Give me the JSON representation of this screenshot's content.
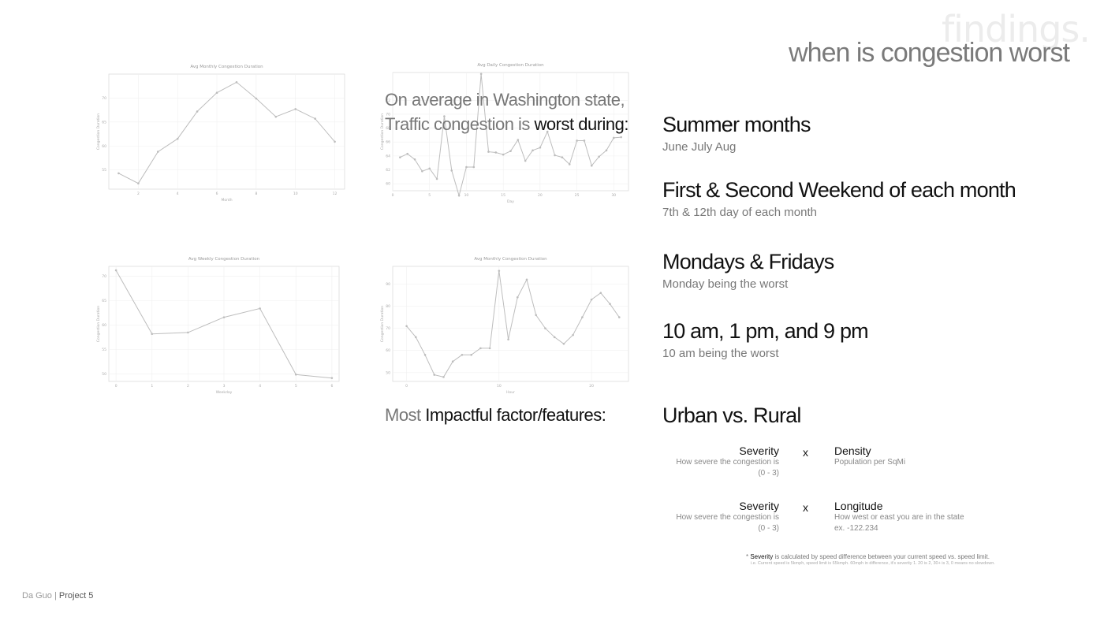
{
  "header": {
    "bg_title": "findings.",
    "subtitle": "when is congestion worst"
  },
  "intro": {
    "line1": "On average in Washington state,",
    "line2_light": "Traffic congestion is ",
    "line2_dark": "worst during:"
  },
  "findings": [
    {
      "title": "Summer months",
      "sub": "June July Aug"
    },
    {
      "title": "First & Second Weekend of each month",
      "sub": "7th & 12th day of each month"
    },
    {
      "title": "Mondays & Fridays",
      "sub": "Monday being the worst"
    },
    {
      "title": "10 am, 1 pm, and 9 pm",
      "sub": "10 am being the worst"
    }
  ],
  "factors": {
    "label_light": "Most ",
    "label_dark": "Impactful factor/features:",
    "heading": "Urban vs. Rural",
    "rows": [
      {
        "left_name": "Severity",
        "left_desc": "How severe the congestion is",
        "left_range": "(0 - 3)",
        "op": "x",
        "right_name": "Density",
        "right_desc": "Population per SqMi",
        "right_extra": ""
      },
      {
        "left_name": "Severity",
        "left_desc": "How severe the congestion is",
        "left_range": "(0 - 3)",
        "op": "x",
        "right_name": "Longitude",
        "right_desc": "How west or east you are in the state",
        "right_extra": "ex. -122.234"
      }
    ]
  },
  "note": {
    "star": "* ",
    "bold": "Severity",
    "text": " is calculated by speed difference between your current speed vs. speed limit.",
    "example": "i.e. Current speed is 5kmph, speed limit is 65kmph. 60mph in difference, it's severity 1. 20 is 2, 30+ is 3, 0 means no slowdown."
  },
  "footer": {
    "name": "Da Guo",
    "sep": " | ",
    "project": "Project 5"
  },
  "chart_data": [
    {
      "type": "line",
      "title": "Avg Monthly Congestion Duration",
      "xlabel": "Month",
      "ylabel": "Congestion Duration",
      "x": [
        1,
        2,
        3,
        4,
        5,
        6,
        7,
        8,
        9,
        10,
        11,
        12
      ],
      "xticks": [
        2,
        4,
        6,
        8,
        10,
        12
      ],
      "yticks": [
        55,
        60,
        65,
        70
      ],
      "ylim": [
        51,
        75
      ],
      "xlim": [
        0.5,
        12.5
      ],
      "values": [
        54.3,
        52.2,
        58.8,
        61.5,
        67.2,
        71.1,
        73.3,
        69.9,
        66.1,
        67.7,
        65.7,
        60.9
      ]
    },
    {
      "type": "line",
      "title": "Avg Daily Congestion Duration",
      "xlabel": "Day",
      "ylabel": "Congestion Duration",
      "x": [
        1,
        2,
        3,
        4,
        5,
        6,
        7,
        8,
        9,
        10,
        11,
        12,
        13,
        14,
        15,
        16,
        17,
        18,
        19,
        20,
        21,
        22,
        23,
        24,
        25,
        26,
        27,
        28,
        29,
        30,
        31
      ],
      "xticks": [
        0,
        5,
        10,
        15,
        20,
        25,
        30
      ],
      "yticks": [
        60,
        62,
        64,
        66,
        68,
        70,
        72
      ],
      "ylim": [
        59,
        76
      ],
      "xlim": [
        0,
        32
      ],
      "values": [
        63.8,
        64.3,
        63.5,
        61.8,
        62.2,
        60.7,
        69.7,
        61.9,
        58.3,
        62.4,
        62.4,
        75.8,
        64.6,
        64.5,
        64.2,
        64.7,
        66.3,
        63.3,
        64.8,
        65.2,
        67.5,
        64.1,
        63.8,
        62.8,
        66.2,
        66.2,
        62.6,
        63.9,
        64.8,
        66.6,
        66.7
      ]
    },
    {
      "type": "line",
      "title": "Avg Weekly Congestion Duration",
      "xlabel": "Weekday",
      "ylabel": "Congestion Duration",
      "x": [
        0,
        1,
        2,
        3,
        4,
        5,
        6
      ],
      "xticks": [
        0,
        1,
        2,
        3,
        4,
        5,
        6
      ],
      "yticks": [
        50,
        55,
        60,
        65,
        70
      ],
      "ylim": [
        48.5,
        72
      ],
      "xlim": [
        -0.2,
        6.2
      ],
      "values": [
        71.2,
        58.2,
        58.5,
        61.6,
        63.4,
        49.9,
        49.2
      ]
    },
    {
      "type": "line",
      "title": "Avg Monthly Congestion Duration",
      "xlabel": "Hour",
      "ylabel": "Congestion Duration",
      "x": [
        0,
        1,
        2,
        3,
        4,
        5,
        6,
        7,
        8,
        9,
        10,
        11,
        12,
        13,
        14,
        15,
        16,
        17,
        18,
        19,
        20,
        21,
        22,
        23
      ],
      "xticks": [
        0,
        10,
        20
      ],
      "yticks": [
        50,
        60,
        70,
        80,
        90
      ],
      "ylim": [
        46,
        98
      ],
      "xlim": [
        -1.5,
        24
      ],
      "values": [
        71,
        66,
        58,
        49,
        48,
        55,
        58,
        58,
        61,
        61,
        96,
        65,
        84,
        92,
        76,
        70,
        66,
        63,
        67,
        75,
        83,
        86,
        81,
        75
      ]
    }
  ]
}
